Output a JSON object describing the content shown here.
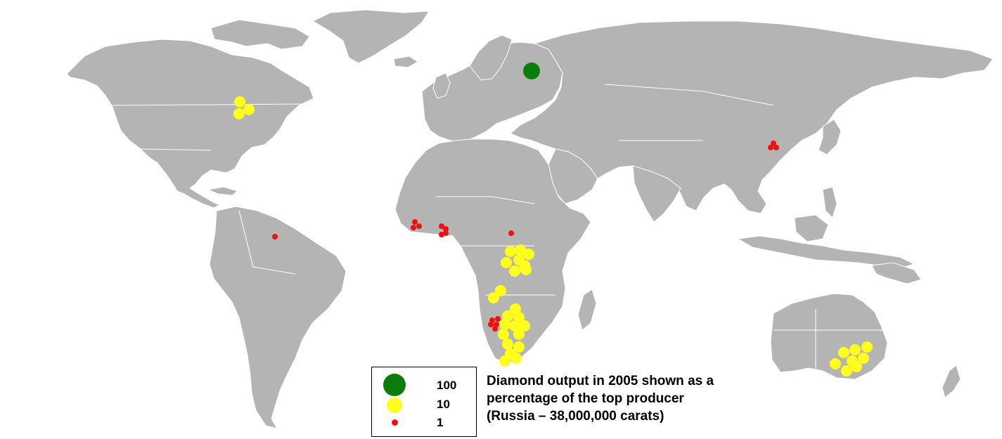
{
  "legend": {
    "items": [
      {
        "value_label": "100",
        "color": "#0a7d0a"
      },
      {
        "value_label": "10",
        "color": "#ffff1a"
      },
      {
        "value_label": "1",
        "color": "#ee1111"
      }
    ]
  },
  "caption": {
    "line1": "Diamond output in 2005 shown as a",
    "line2": "percentage of the top producer",
    "line3": "(Russia – 38,000,000 carats)"
  },
  "colors": {
    "land": "#b4b4b4",
    "borders": "#ffffff",
    "background": "#ffffff"
  }
}
